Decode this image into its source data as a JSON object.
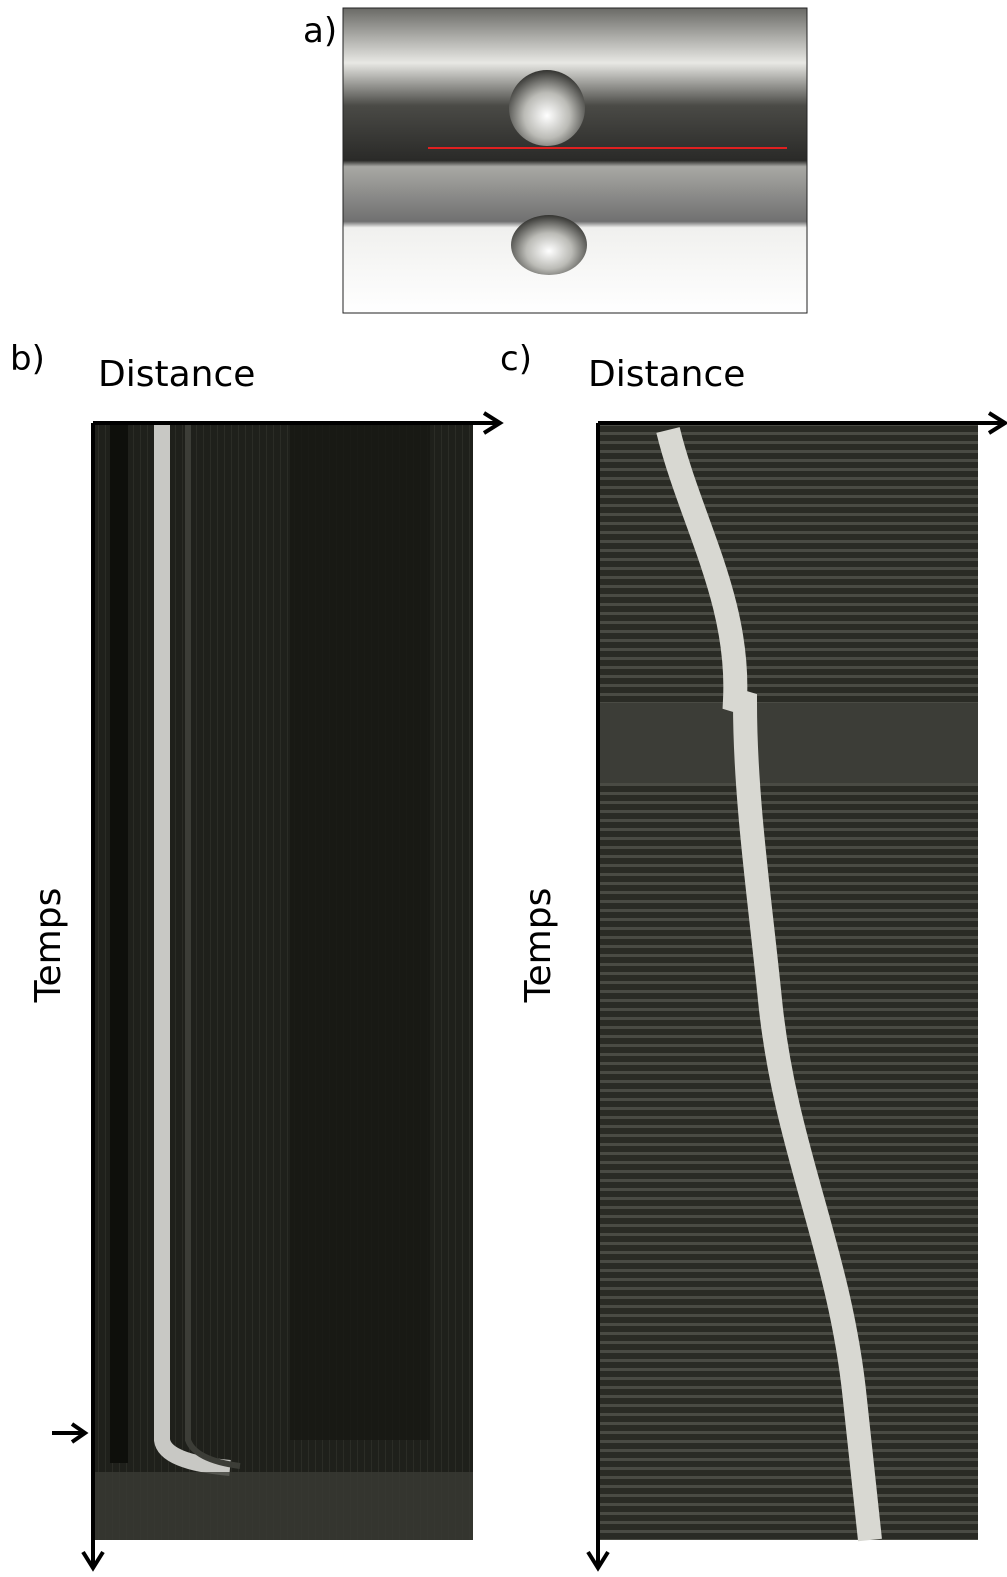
{
  "panels": [
    {
      "label": "a)"
    },
    {
      "label": "b)",
      "x_axis": "Distance",
      "y_axis": "Temps"
    },
    {
      "label": "c)",
      "x_axis": "Distance",
      "y_axis": "Temps"
    }
  ]
}
